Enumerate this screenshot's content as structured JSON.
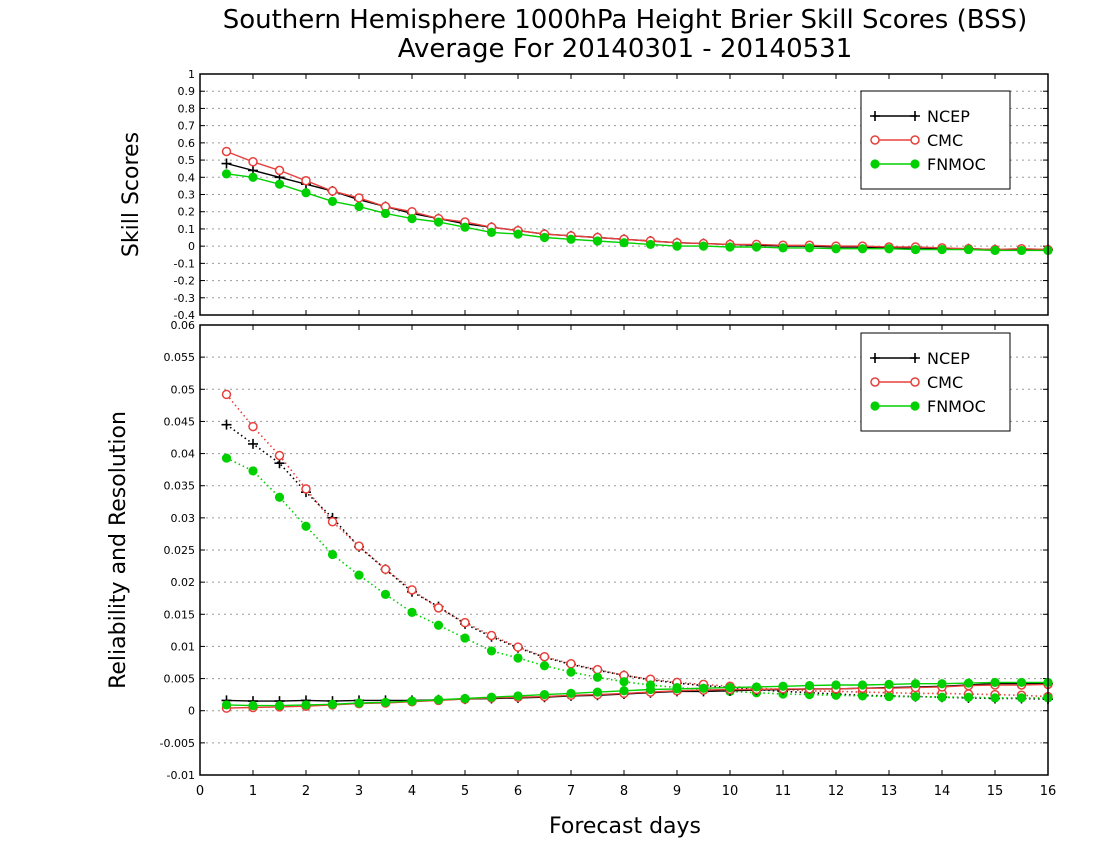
{
  "chart_data": {
    "type": "line",
    "title": "Southern Hemisphere 1000hPa Height Brier Skill Scores (BSS)",
    "subtitle": "Average For 20140301 - 20140531",
    "xlabel": "Forecast days",
    "xlim": [
      0,
      16
    ],
    "xticks": [
      "0",
      "1",
      "2",
      "3",
      "4",
      "5",
      "6",
      "7",
      "8",
      "9",
      "10",
      "11",
      "12",
      "13",
      "14",
      "15",
      "16"
    ],
    "x": [
      0.5,
      1,
      1.5,
      2,
      2.5,
      3,
      3.5,
      4,
      4.5,
      5,
      5.5,
      6,
      6.5,
      7,
      7.5,
      8,
      8.5,
      9,
      9.5,
      10,
      10.5,
      11,
      11.5,
      12,
      12.5,
      13,
      13.5,
      14,
      14.5,
      15,
      15.5,
      16
    ],
    "colors": {
      "NCEP": "#000000",
      "CMC": "#e8403c",
      "FNMOC": "#00d000"
    },
    "panels": [
      {
        "name": "skill",
        "ylabel": "Skill Scores",
        "ylim": [
          -0.4,
          1
        ],
        "yticks": [
          "1",
          "0.9",
          "0.8",
          "0.7",
          "0.6",
          "0.5",
          "0.4",
          "0.3",
          "0.2",
          "0.1",
          "0",
          "-0.1",
          "-0.2",
          "-0.3",
          "-0.4"
        ],
        "legend": [
          "NCEP",
          "CMC",
          "FNMOC"
        ],
        "legend_position": "top-right",
        "series": [
          {
            "name": "NCEP",
            "style": "solid",
            "marker": "plus",
            "values": [
              0.48,
              0.44,
              0.4,
              0.36,
              0.32,
              0.27,
              0.23,
              0.19,
              0.16,
              0.13,
              0.11,
              0.09,
              0.07,
              0.06,
              0.05,
              0.04,
              0.03,
              0.02,
              0.015,
              0.01,
              0.005,
              0.0,
              0.0,
              -0.005,
              -0.005,
              -0.01,
              -0.01,
              -0.015,
              -0.015,
              -0.02,
              -0.02,
              -0.02
            ]
          },
          {
            "name": "CMC",
            "style": "solid",
            "marker": "open-circle",
            "values": [
              0.55,
              0.49,
              0.44,
              0.38,
              0.32,
              0.28,
              0.23,
              0.2,
              0.16,
              0.14,
              0.11,
              0.09,
              0.07,
              0.06,
              0.05,
              0.04,
              0.03,
              0.02,
              0.015,
              0.01,
              0.01,
              0.005,
              0.005,
              0.0,
              0.0,
              -0.005,
              -0.005,
              -0.01,
              -0.015,
              -0.02,
              -0.015,
              -0.02
            ]
          },
          {
            "name": "FNMOC",
            "style": "solid",
            "marker": "filled-circle",
            "values": [
              0.42,
              0.4,
              0.36,
              0.31,
              0.26,
              0.23,
              0.19,
              0.16,
              0.14,
              0.11,
              0.08,
              0.07,
              0.05,
              0.04,
              0.03,
              0.02,
              0.01,
              0.0,
              0.0,
              -0.005,
              -0.005,
              -0.01,
              -0.01,
              -0.015,
              -0.015,
              -0.015,
              -0.02,
              -0.02,
              -0.02,
              -0.025,
              -0.025,
              -0.025
            ]
          }
        ]
      },
      {
        "name": "reliability-resolution",
        "ylabel": "Reliability and Resolution",
        "ylim": [
          -0.01,
          0.06
        ],
        "yticks": [
          "0.06",
          "0.055",
          "0.05",
          "0.045",
          "0.04",
          "0.035",
          "0.03",
          "0.025",
          "0.02",
          "0.015",
          "0.01",
          "0.005",
          "0",
          "-0.005",
          "-0.01"
        ],
        "legend": [
          "NCEP",
          "CMC",
          "FNMOC"
        ],
        "legend_position": "top-right",
        "series": [
          {
            "name": "NCEP",
            "group": "resolution",
            "style": "dotted",
            "marker": "plus",
            "values": [
              0.0445,
              0.0415,
              0.0385,
              0.034,
              0.03,
              0.0255,
              0.022,
              0.0185,
              0.0162,
              0.0135,
              0.0115,
              0.0098,
              0.0083,
              0.0072,
              0.0063,
              0.0055,
              0.0048,
              0.0043,
              0.0039,
              0.0036,
              0.0033,
              0.003,
              0.0028,
              0.0026,
              0.0024,
              0.0023,
              0.0022,
              0.0021,
              0.002,
              0.0019,
              0.0019,
              0.0018
            ]
          },
          {
            "name": "CMC",
            "group": "resolution",
            "style": "dotted",
            "marker": "open-circle",
            "values": [
              0.0492,
              0.0442,
              0.0397,
              0.0345,
              0.0294,
              0.0256,
              0.022,
              0.0188,
              0.016,
              0.0137,
              0.0117,
              0.0099,
              0.0084,
              0.0073,
              0.0064,
              0.0055,
              0.0049,
              0.0044,
              0.0041,
              0.0038,
              0.0035,
              0.0033,
              0.0031,
              0.003,
              0.0029,
              0.0028,
              0.0027,
              0.0027,
              0.0026,
              0.0025,
              0.0024,
              0.0022
            ]
          },
          {
            "name": "FNMOC",
            "group": "resolution",
            "style": "dotted",
            "marker": "filled-circle",
            "values": [
              0.0393,
              0.0373,
              0.0332,
              0.0287,
              0.0243,
              0.0211,
              0.0181,
              0.0153,
              0.0133,
              0.0113,
              0.0093,
              0.0082,
              0.007,
              0.006,
              0.0052,
              0.0045,
              0.004,
              0.0036,
              0.0033,
              0.003,
              0.0028,
              0.0026,
              0.0025,
              0.0024,
              0.0023,
              0.0022,
              0.0022,
              0.0021,
              0.0021,
              0.002,
              0.002,
              0.002
            ]
          },
          {
            "name": "NCEP",
            "group": "reliability",
            "style": "solid",
            "marker": "plus",
            "values": [
              0.0016,
              0.0015,
              0.0015,
              0.0016,
              0.0015,
              0.0016,
              0.0016,
              0.0016,
              0.0017,
              0.0018,
              0.0019,
              0.002,
              0.0021,
              0.0023,
              0.0024,
              0.0026,
              0.0028,
              0.003,
              0.003,
              0.0031,
              0.0032,
              0.0033,
              0.0034,
              0.0034,
              0.0035,
              0.0036,
              0.0037,
              0.0038,
              0.004,
              0.0042,
              0.0042,
              0.0042
            ]
          },
          {
            "name": "CMC",
            "group": "reliability",
            "style": "solid",
            "marker": "open-circle",
            "values": [
              0.0004,
              0.0005,
              0.0006,
              0.0007,
              0.0009,
              0.0011,
              0.0012,
              0.0014,
              0.0016,
              0.0018,
              0.002,
              0.0021,
              0.0022,
              0.0024,
              0.0025,
              0.0027,
              0.0029,
              0.0031,
              0.0032,
              0.0033,
              0.0033,
              0.0034,
              0.0034,
              0.0034,
              0.0035,
              0.0035,
              0.0036,
              0.0037,
              0.0039,
              0.004,
              0.004,
              0.0041
            ]
          },
          {
            "name": "FNMOC",
            "group": "reliability",
            "style": "solid",
            "marker": "filled-circle",
            "values": [
              0.0009,
              0.0008,
              0.0008,
              0.0009,
              0.001,
              0.0012,
              0.0013,
              0.0015,
              0.0017,
              0.0019,
              0.0021,
              0.0023,
              0.0025,
              0.0027,
              0.0029,
              0.0031,
              0.0033,
              0.0034,
              0.0035,
              0.0036,
              0.0037,
              0.0038,
              0.0039,
              0.004,
              0.004,
              0.0041,
              0.0042,
              0.0042,
              0.0043,
              0.0044,
              0.0044,
              0.0044
            ]
          }
        ]
      }
    ]
  }
}
